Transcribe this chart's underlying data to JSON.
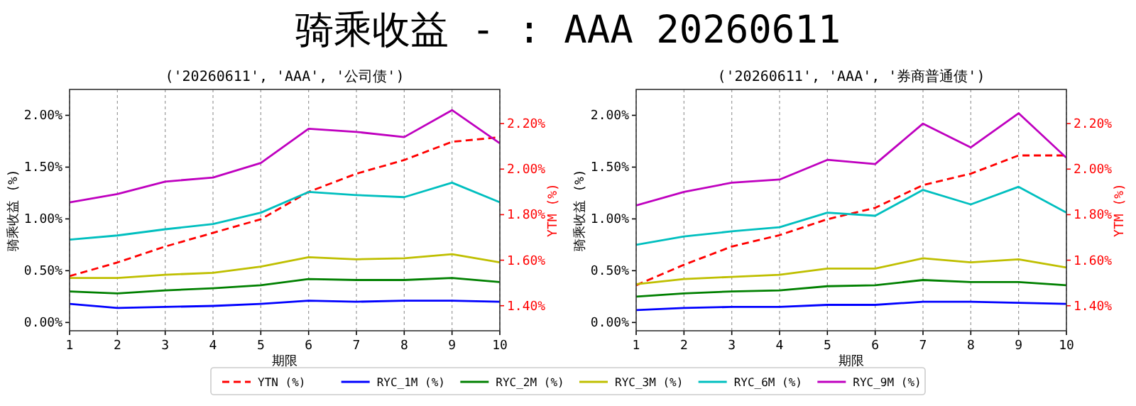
{
  "chart_data": [
    {
      "type": "other",
      "title": "骑乘收益 - : AAA 20260611"
    },
    {
      "type": "line",
      "title": "('20260611', 'AAA', '公司债')",
      "xlabel": "期限",
      "ylabel": "骑乘收益 (%)",
      "y2label": "YTM (%)",
      "x": [
        1,
        2,
        3,
        4,
        5,
        6,
        7,
        8,
        9,
        10
      ],
      "xlim": [
        1,
        10
      ],
      "xticks": [
        1,
        2,
        3,
        4,
        5,
        6,
        7,
        8,
        9,
        10
      ],
      "ylim": [
        -0.08,
        2.25
      ],
      "yticks": [
        {
          "value": 0,
          "label": "0.00%"
        },
        {
          "value": 0.5,
          "label": "0.50%"
        },
        {
          "value": 1,
          "label": "1.00%"
        },
        {
          "value": 1.5,
          "label": "1.50%"
        },
        {
          "value": 2,
          "label": "2.00%"
        }
      ],
      "y2lim": [
        1.29,
        2.35
      ],
      "y2ticks": [
        {
          "value": 1.4,
          "label": "1.40%"
        },
        {
          "value": 1.6,
          "label": "1.60%"
        },
        {
          "value": 1.8,
          "label": "1.80%"
        },
        {
          "value": 2.0,
          "label": "2.00%"
        },
        {
          "value": 2.2,
          "label": "2.20%"
        }
      ],
      "grid": "x",
      "legend": "bottom",
      "series": [
        {
          "name": "YTN (%)",
          "color": "#ff0000",
          "axis": "y2",
          "line_style": "dashed",
          "values": [
            1.53,
            1.59,
            1.66,
            1.72,
            1.78,
            1.9,
            1.98,
            2.04,
            2.12,
            2.14
          ]
        },
        {
          "name": "RYC_1M (%)",
          "color": "#0000ff",
          "values": [
            0.18,
            0.14,
            0.15,
            0.16,
            0.18,
            0.21,
            0.2,
            0.21,
            0.21,
            0.2
          ]
        },
        {
          "name": "RYC_2M (%)",
          "color": "#008000",
          "values": [
            0.3,
            0.28,
            0.31,
            0.33,
            0.36,
            0.42,
            0.41,
            0.41,
            0.43,
            0.39
          ]
        },
        {
          "name": "RYC_3M (%)",
          "color": "#bfbf00",
          "values": [
            0.43,
            0.43,
            0.46,
            0.48,
            0.54,
            0.63,
            0.61,
            0.62,
            0.66,
            0.58
          ]
        },
        {
          "name": "RYC_6M (%)",
          "color": "#00bfbf",
          "values": [
            0.8,
            0.84,
            0.9,
            0.95,
            1.06,
            1.26,
            1.23,
            1.21,
            1.35,
            1.16
          ]
        },
        {
          "name": "RYC_9M (%)",
          "color": "#bf00bf",
          "values": [
            1.16,
            1.24,
            1.36,
            1.4,
            1.54,
            1.87,
            1.84,
            1.79,
            2.05,
            1.73
          ]
        }
      ]
    },
    {
      "type": "line",
      "title": "('20260611', 'AAA', '券商普通债')",
      "xlabel": "期限",
      "ylabel": "骑乘收益 (%)",
      "y2label": "YTM (%)",
      "x": [
        1,
        2,
        3,
        4,
        5,
        6,
        7,
        8,
        9,
        10
      ],
      "xlim": [
        1,
        10
      ],
      "xticks": [
        1,
        2,
        3,
        4,
        5,
        6,
        7,
        8,
        9,
        10
      ],
      "ylim": [
        -0.08,
        2.25
      ],
      "yticks": [
        {
          "value": 0,
          "label": "0.00%"
        },
        {
          "value": 0.5,
          "label": "0.50%"
        },
        {
          "value": 1,
          "label": "1.00%"
        },
        {
          "value": 1.5,
          "label": "1.50%"
        },
        {
          "value": 2,
          "label": "2.00%"
        }
      ],
      "y2lim": [
        1.29,
        2.35
      ],
      "y2ticks": [
        {
          "value": 1.4,
          "label": "1.40%"
        },
        {
          "value": 1.6,
          "label": "1.60%"
        },
        {
          "value": 1.8,
          "label": "1.80%"
        },
        {
          "value": 2.0,
          "label": "2.00%"
        },
        {
          "value": 2.2,
          "label": "2.20%"
        }
      ],
      "grid": "x",
      "series": [
        {
          "color": "#ff0000",
          "axis": "y2",
          "line_style": "dashed",
          "values": [
            1.49,
            1.58,
            1.66,
            1.71,
            1.78,
            1.83,
            1.93,
            1.98,
            2.06,
            2.06
          ]
        },
        {
          "color": "#0000ff",
          "values": [
            0.12,
            0.14,
            0.15,
            0.15,
            0.17,
            0.17,
            0.2,
            0.2,
            0.19,
            0.18
          ]
        },
        {
          "color": "#008000",
          "values": [
            0.25,
            0.28,
            0.3,
            0.31,
            0.35,
            0.36,
            0.41,
            0.39,
            0.39,
            0.36
          ]
        },
        {
          "color": "#bfbf00",
          "values": [
            0.37,
            0.42,
            0.44,
            0.46,
            0.52,
            0.52,
            0.62,
            0.58,
            0.61,
            0.53
          ]
        },
        {
          "color": "#00bfbf",
          "values": [
            0.75,
            0.83,
            0.88,
            0.92,
            1.06,
            1.03,
            1.28,
            1.14,
            1.31,
            1.06
          ]
        },
        {
          "color": "#bf00bf",
          "values": [
            1.13,
            1.26,
            1.35,
            1.38,
            1.57,
            1.53,
            1.92,
            1.69,
            2.02,
            1.59
          ]
        }
      ]
    }
  ]
}
